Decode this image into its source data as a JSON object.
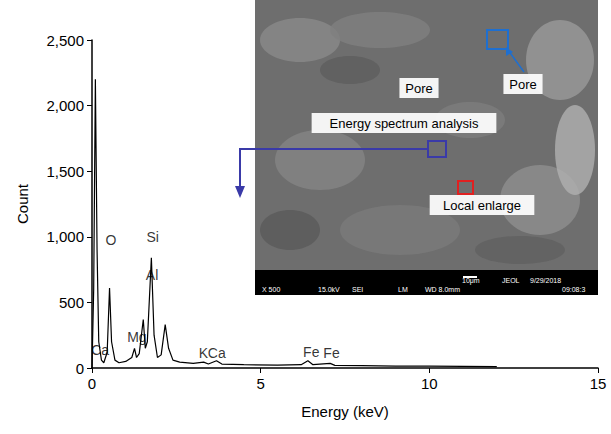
{
  "chart_data": {
    "type": "line",
    "x_label": "Energy (keV)",
    "y_label": "Count",
    "color": "#000000",
    "grid": false,
    "x": [
      0,
      0.05,
      0.1,
      0.15,
      0.2,
      0.28,
      0.35,
      0.45,
      0.52,
      0.58,
      0.68,
      0.8,
      1.0,
      1.18,
      1.26,
      1.32,
      1.4,
      1.52,
      1.58,
      1.64,
      1.76,
      1.84,
      1.94,
      2.05,
      2.17,
      2.27,
      2.4,
      2.6,
      3.0,
      3.31,
      3.45,
      3.69,
      3.85,
      4.5,
      5.5,
      6.2,
      6.4,
      6.55,
      7.06,
      7.2,
      8,
      9,
      10,
      11,
      12
    ],
    "values": [
      0,
      600,
      2200,
      900,
      200,
      60,
      40,
      120,
      610,
      200,
      60,
      40,
      50,
      80,
      150,
      80,
      110,
      370,
      150,
      200,
      840,
      250,
      80,
      100,
      330,
      150,
      60,
      45,
      35,
      45,
      30,
      55,
      30,
      25,
      22,
      25,
      55,
      25,
      35,
      20,
      18,
      15,
      14,
      12,
      10
    ],
    "xlim": [
      0,
      15
    ],
    "xticks": [
      0,
      5,
      10,
      15
    ],
    "ylim": [
      0,
      2500
    ],
    "yticks": [
      0,
      500,
      1000,
      1500,
      2000,
      2500
    ],
    "annotations": [
      {
        "text": "Ca",
        "x": 0.24,
        "y": 137
      },
      {
        "text": "O",
        "x": 0.56,
        "y": 976
      },
      {
        "text": "Mg",
        "x": 1.33,
        "y": 236
      },
      {
        "text": "Al",
        "x": 1.78,
        "y": 709
      },
      {
        "text": "Si",
        "x": 1.8,
        "y": 998
      },
      {
        "text": "K",
        "x": 3.3,
        "y": 114
      },
      {
        "text": "Ca",
        "x": 3.7,
        "y": 114
      },
      {
        "text": "Fe",
        "x": 6.5,
        "y": 122
      },
      {
        "text": "Fe",
        "x": 7.1,
        "y": 114
      }
    ],
    "inset": {
      "labels": [
        "Pore",
        "Pore",
        "Energy spectrum analysis",
        "Local enlarge"
      ],
      "scale_bar": [
        "X 500",
        "15.0kV",
        "SEI",
        "LM",
        "WD 8.0mm",
        "10μm",
        "JEOL",
        "9/29/2018",
        "09:08:3"
      ]
    }
  }
}
